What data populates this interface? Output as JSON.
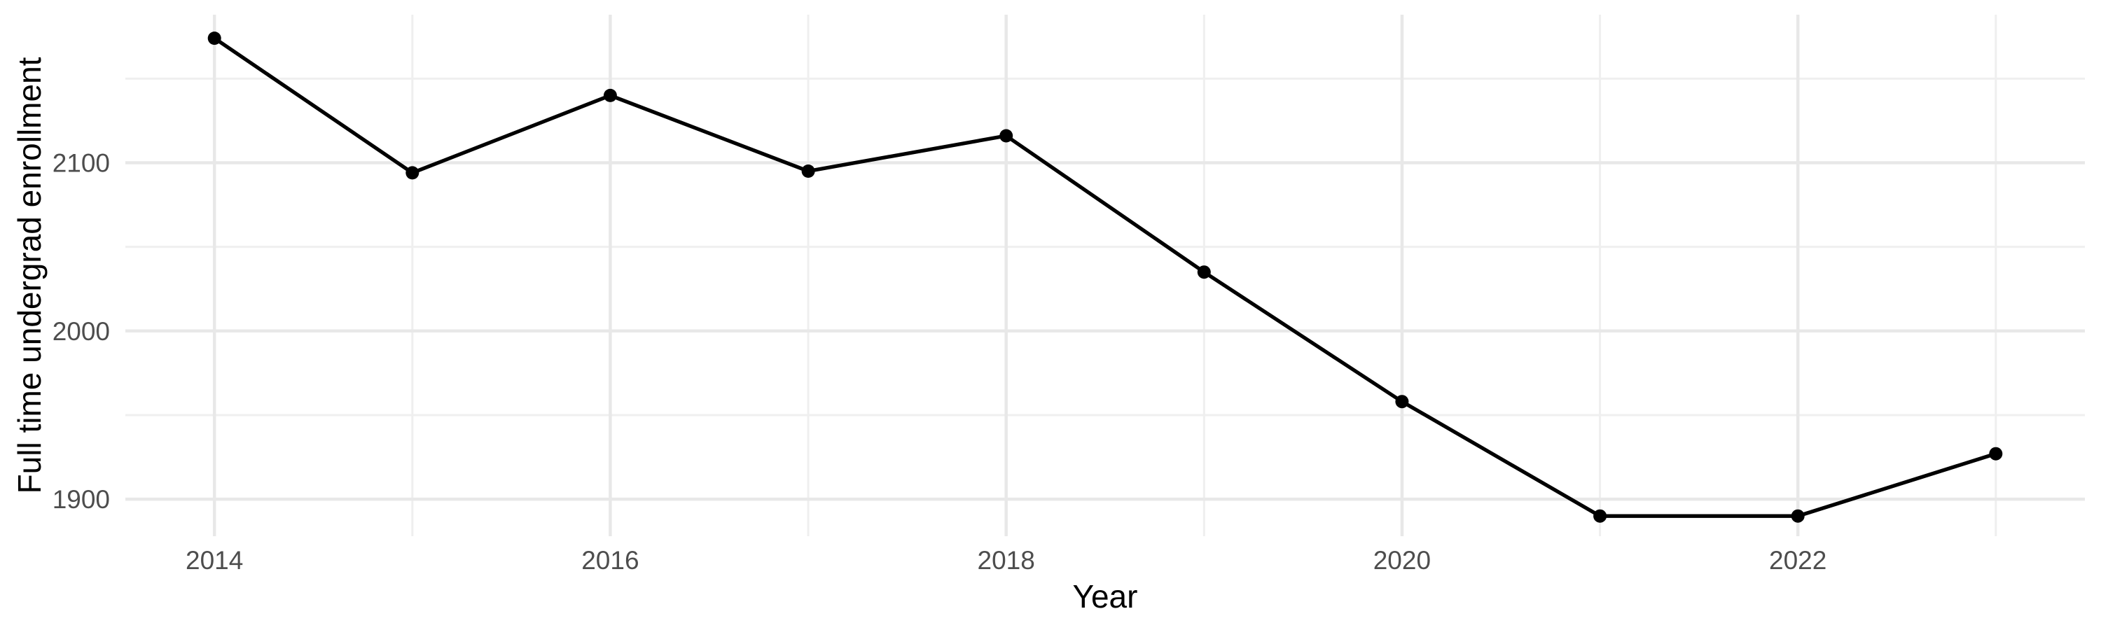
{
  "figure": {
    "background": "#ffffff",
    "kind": "line-chart"
  },
  "chart_data": {
    "type": "line",
    "title": "",
    "xlabel": "Year",
    "ylabel": "Full time undergrad enrollment",
    "series": [
      {
        "name": "Full time undergrad enrollment",
        "x": [
          2014,
          2015,
          2016,
          2017,
          2018,
          2019,
          2020,
          2021,
          2022,
          2023
        ],
        "values": [
          2174,
          2094,
          2140,
          2095,
          2116,
          2035,
          1958,
          1890,
          1890,
          1927
        ]
      }
    ],
    "xlim": [
      2013.55,
      2023.45
    ],
    "ylim": [
      1878,
      2188
    ],
    "x_major_ticks": [
      2014,
      2016,
      2018,
      2020,
      2022
    ],
    "x_minor_gridlines": [
      2015,
      2017,
      2019,
      2021,
      2023
    ],
    "y_major_ticks": [
      1900,
      2000,
      2100
    ],
    "y_minor_gridlines": [
      1950,
      2050,
      2150
    ],
    "grid": true,
    "legend_position": "none",
    "marker": "filled-circle",
    "colors": {
      "line": "#000000",
      "point": "#000000",
      "grid_major": "#e8e8e8",
      "grid_minor": "#efefef",
      "tick_label": "#4d4d4d",
      "axis_title": "#000000"
    }
  }
}
